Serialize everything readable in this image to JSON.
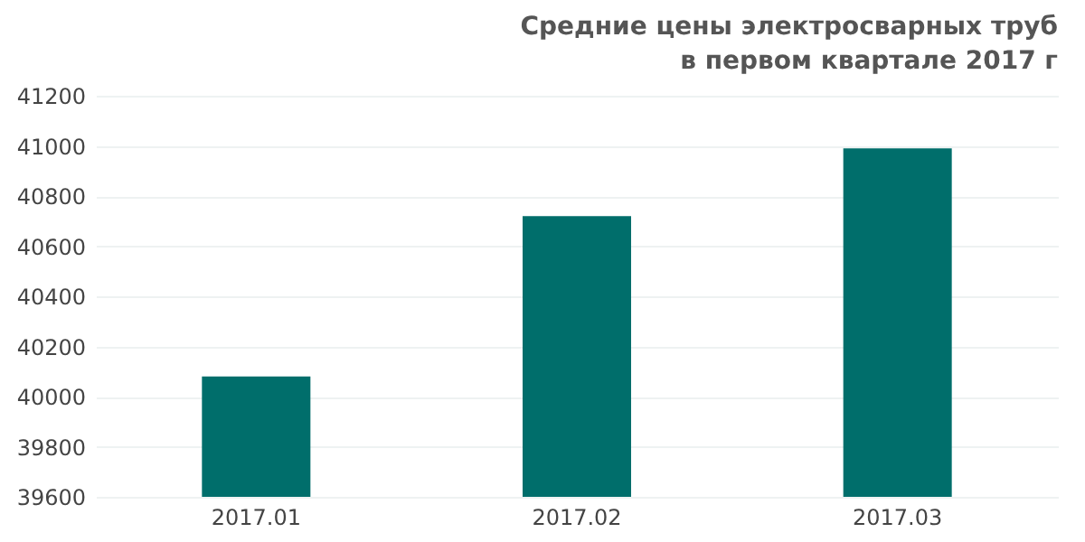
{
  "chart_data": {
    "type": "bar",
    "title": "Средние цены электросварных труб\nв первом квартале 2017 г",
    "categories": [
      "2017.01",
      "2017.02",
      "2017.03"
    ],
    "values": [
      40080,
      40720,
      40990
    ],
    "color": "#006e6b",
    "ylim": [
      39600,
      41200
    ],
    "yticks": [
      39600,
      39800,
      40000,
      40200,
      40400,
      40600,
      40800,
      41000,
      41200
    ],
    "grid": "y"
  }
}
